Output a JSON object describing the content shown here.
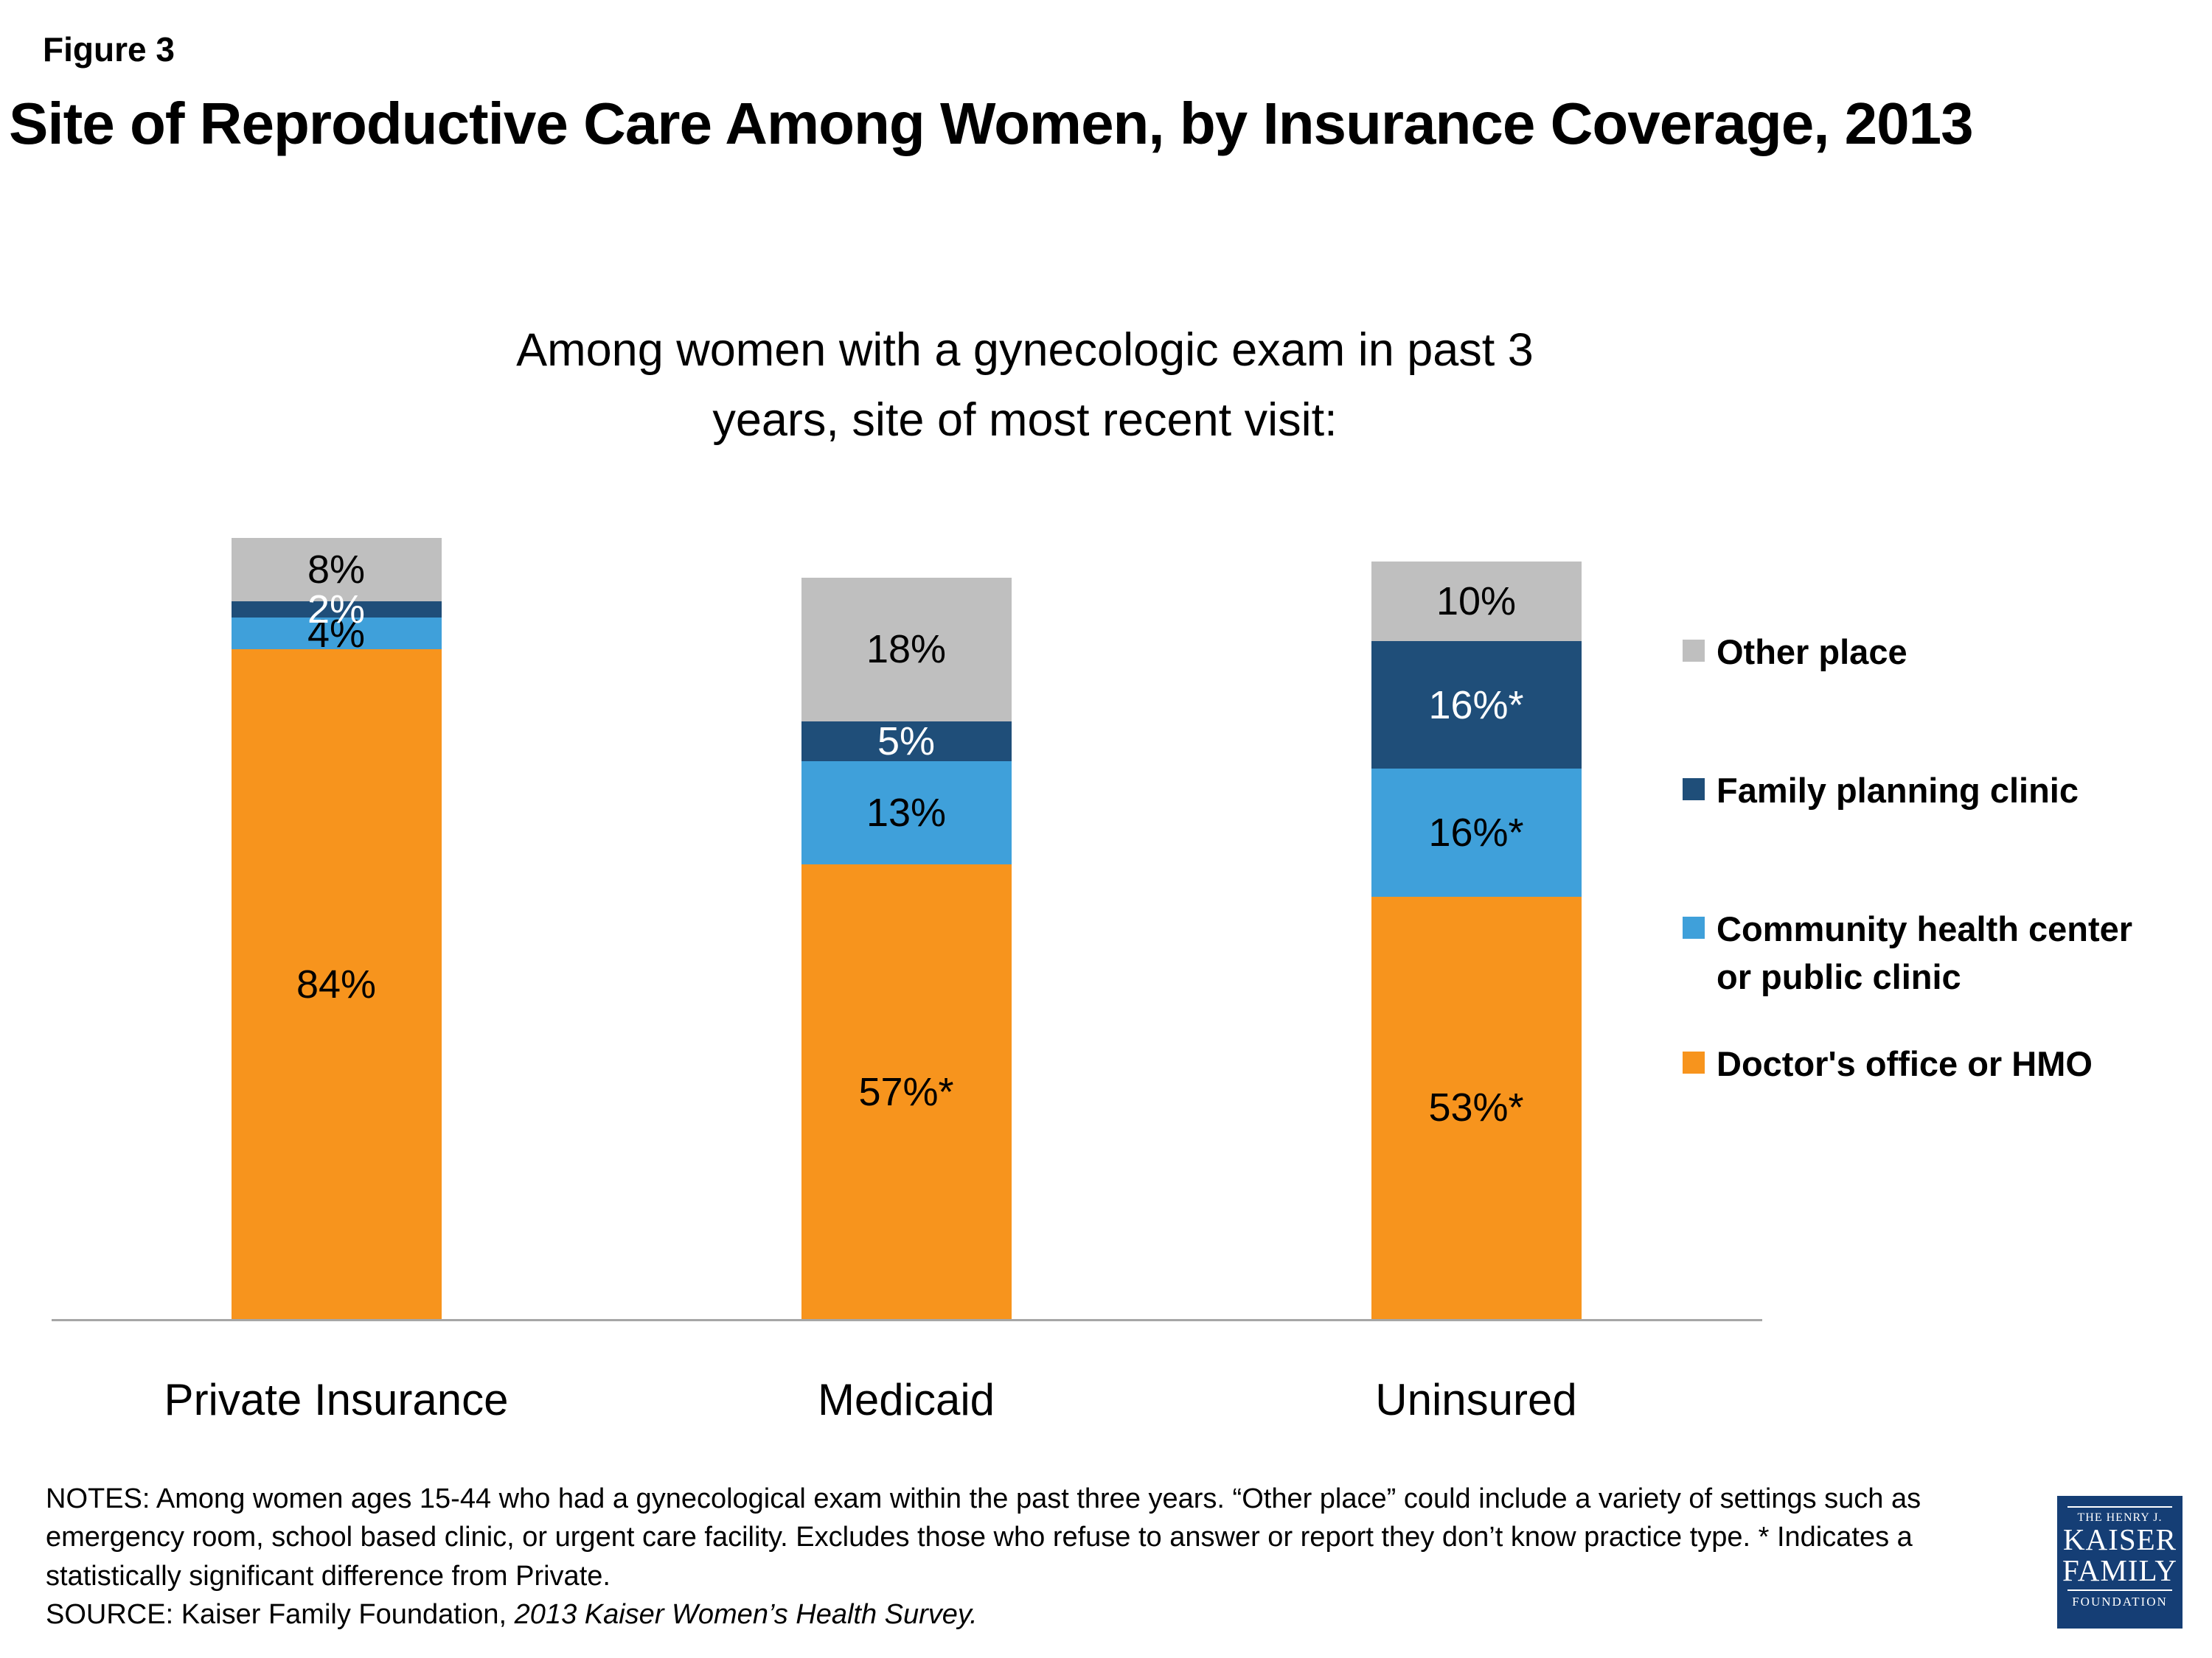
{
  "figure_label": "Figure 3",
  "title": "Site of Reproductive Care Among Women, by Insurance Coverage, 2013",
  "subtitle": {
    "line1": "Among women with a gynecologic exam in past 3",
    "line2": "years, site of most recent visit:"
  },
  "chart_data": {
    "type": "bar",
    "stacked": true,
    "categories": [
      "Private Insurance",
      "Medicaid",
      "Uninsured"
    ],
    "series": [
      {
        "key": "doctors-office",
        "name": "Doctor's office or HMO",
        "color": "#F7941D",
        "label_color": "#000000",
        "values": [
          84,
          57,
          53
        ],
        "labels": [
          "84%",
          "57%*",
          "53%*"
        ]
      },
      {
        "key": "community-health",
        "name": "Community health center or public clinic",
        "color": "#3FA0DA",
        "label_color": "#000000",
        "values": [
          4,
          13,
          16
        ],
        "labels": [
          "4%",
          "13%",
          "16%*"
        ]
      },
      {
        "key": "family-planning",
        "name": "Family planning clinic",
        "color": "#1F4E79",
        "label_color": "#FFFFFF",
        "values": [
          2,
          5,
          16
        ],
        "labels": [
          "2%",
          "5%",
          "16%*"
        ]
      },
      {
        "key": "other-place",
        "name": "Other place",
        "color": "#BFBFBF",
        "label_color": "#000000",
        "values": [
          8,
          18,
          10
        ],
        "labels": [
          "8%",
          "18%",
          "10%"
        ]
      }
    ],
    "xlabel": "",
    "ylabel": "",
    "ylim": [
      0,
      100
    ],
    "grid": false,
    "legend_position": "right",
    "baseline_color": "#A6A6A6",
    "annotation": "* Indicates a statistically significant difference from Private."
  },
  "legend": {
    "items": [
      {
        "key": "other-place",
        "label": "Other place",
        "color": "#BFBFBF"
      },
      {
        "key": "family-planning",
        "label": "Family planning clinic",
        "color": "#1F4E79"
      },
      {
        "key": "community-health",
        "label": "Community health center or public clinic",
        "color": "#3FA0DA",
        "tight": true
      },
      {
        "key": "doctors-office",
        "label": "Doctor's office or HMO",
        "color": "#F7941D"
      }
    ]
  },
  "notes": {
    "body": "NOTES: Among women ages 15-44 who had a gynecological  exam within the past three years. “Other place” could include a variety of settings such as  emergency room, school based clinic, or urgent care facility.  Excludes those who refuse to answer or report they don’t know practice type.  * Indicates a statistically significant difference from Private.",
    "source_prefix": "SOURCE: Kaiser Family Foundation, ",
    "source_title": "2013 Kaiser Women’s Health Survey."
  },
  "logo": {
    "bg": "#153E75",
    "line1": "THE HENRY J.",
    "line2": "KAISER",
    "line3": "FAMILY",
    "line4": "FOUNDATION"
  }
}
